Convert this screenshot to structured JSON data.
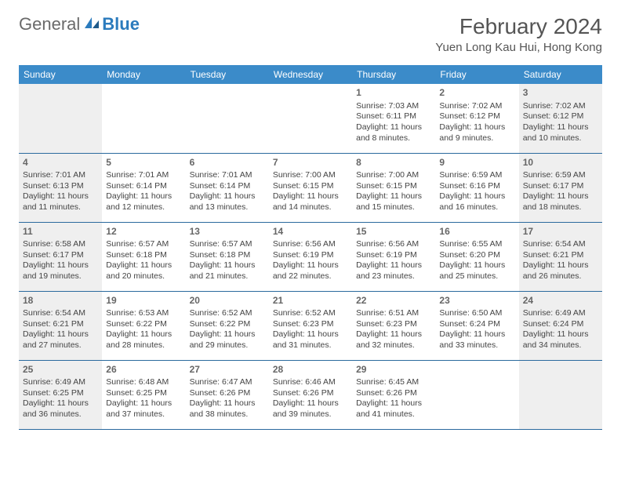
{
  "logo": {
    "part1": "General",
    "part2": "Blue"
  },
  "title": "February 2024",
  "location": "Yuen Long Kau Hui, Hong Kong",
  "colors": {
    "header_bg": "#3b8bc9",
    "header_text": "#ffffff",
    "border": "#2b6a9e",
    "weekend_bg": "#efefef",
    "text": "#444444",
    "logo_grey": "#6a6a6a",
    "logo_blue": "#2b7bbd"
  },
  "dayNames": [
    "Sunday",
    "Monday",
    "Tuesday",
    "Wednesday",
    "Thursday",
    "Friday",
    "Saturday"
  ],
  "weeks": [
    [
      null,
      null,
      null,
      null,
      {
        "d": "1",
        "sr": "7:03 AM",
        "ss": "6:11 PM",
        "dl": "11 hours and 8 minutes."
      },
      {
        "d": "2",
        "sr": "7:02 AM",
        "ss": "6:12 PM",
        "dl": "11 hours and 9 minutes."
      },
      {
        "d": "3",
        "sr": "7:02 AM",
        "ss": "6:12 PM",
        "dl": "11 hours and 10 minutes."
      }
    ],
    [
      {
        "d": "4",
        "sr": "7:01 AM",
        "ss": "6:13 PM",
        "dl": "11 hours and 11 minutes."
      },
      {
        "d": "5",
        "sr": "7:01 AM",
        "ss": "6:14 PM",
        "dl": "11 hours and 12 minutes."
      },
      {
        "d": "6",
        "sr": "7:01 AM",
        "ss": "6:14 PM",
        "dl": "11 hours and 13 minutes."
      },
      {
        "d": "7",
        "sr": "7:00 AM",
        "ss": "6:15 PM",
        "dl": "11 hours and 14 minutes."
      },
      {
        "d": "8",
        "sr": "7:00 AM",
        "ss": "6:15 PM",
        "dl": "11 hours and 15 minutes."
      },
      {
        "d": "9",
        "sr": "6:59 AM",
        "ss": "6:16 PM",
        "dl": "11 hours and 16 minutes."
      },
      {
        "d": "10",
        "sr": "6:59 AM",
        "ss": "6:17 PM",
        "dl": "11 hours and 18 minutes."
      }
    ],
    [
      {
        "d": "11",
        "sr": "6:58 AM",
        "ss": "6:17 PM",
        "dl": "11 hours and 19 minutes."
      },
      {
        "d": "12",
        "sr": "6:57 AM",
        "ss": "6:18 PM",
        "dl": "11 hours and 20 minutes."
      },
      {
        "d": "13",
        "sr": "6:57 AM",
        "ss": "6:18 PM",
        "dl": "11 hours and 21 minutes."
      },
      {
        "d": "14",
        "sr": "6:56 AM",
        "ss": "6:19 PM",
        "dl": "11 hours and 22 minutes."
      },
      {
        "d": "15",
        "sr": "6:56 AM",
        "ss": "6:19 PM",
        "dl": "11 hours and 23 minutes."
      },
      {
        "d": "16",
        "sr": "6:55 AM",
        "ss": "6:20 PM",
        "dl": "11 hours and 25 minutes."
      },
      {
        "d": "17",
        "sr": "6:54 AM",
        "ss": "6:21 PM",
        "dl": "11 hours and 26 minutes."
      }
    ],
    [
      {
        "d": "18",
        "sr": "6:54 AM",
        "ss": "6:21 PM",
        "dl": "11 hours and 27 minutes."
      },
      {
        "d": "19",
        "sr": "6:53 AM",
        "ss": "6:22 PM",
        "dl": "11 hours and 28 minutes."
      },
      {
        "d": "20",
        "sr": "6:52 AM",
        "ss": "6:22 PM",
        "dl": "11 hours and 29 minutes."
      },
      {
        "d": "21",
        "sr": "6:52 AM",
        "ss": "6:23 PM",
        "dl": "11 hours and 31 minutes."
      },
      {
        "d": "22",
        "sr": "6:51 AM",
        "ss": "6:23 PM",
        "dl": "11 hours and 32 minutes."
      },
      {
        "d": "23",
        "sr": "6:50 AM",
        "ss": "6:24 PM",
        "dl": "11 hours and 33 minutes."
      },
      {
        "d": "24",
        "sr": "6:49 AM",
        "ss": "6:24 PM",
        "dl": "11 hours and 34 minutes."
      }
    ],
    [
      {
        "d": "25",
        "sr": "6:49 AM",
        "ss": "6:25 PM",
        "dl": "11 hours and 36 minutes."
      },
      {
        "d": "26",
        "sr": "6:48 AM",
        "ss": "6:25 PM",
        "dl": "11 hours and 37 minutes."
      },
      {
        "d": "27",
        "sr": "6:47 AM",
        "ss": "6:26 PM",
        "dl": "11 hours and 38 minutes."
      },
      {
        "d": "28",
        "sr": "6:46 AM",
        "ss": "6:26 PM",
        "dl": "11 hours and 39 minutes."
      },
      {
        "d": "29",
        "sr": "6:45 AM",
        "ss": "6:26 PM",
        "dl": "11 hours and 41 minutes."
      },
      null,
      null
    ]
  ],
  "labels": {
    "sunrise": "Sunrise:",
    "sunset": "Sunset:",
    "daylight": "Daylight:"
  }
}
